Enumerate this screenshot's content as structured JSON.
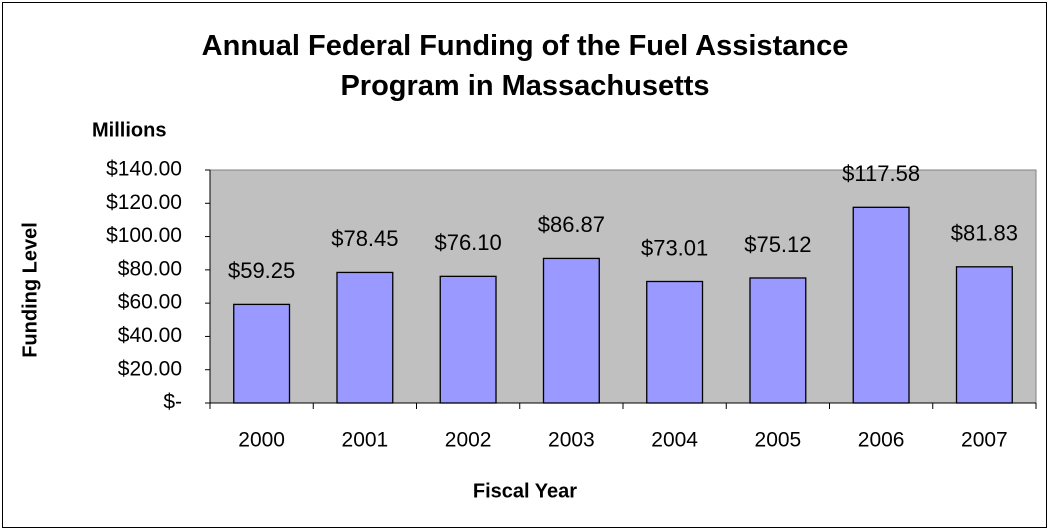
{
  "chart_data": {
    "type": "bar",
    "title": "Annual Federal Funding of the Fuel Assistance Program in Massachusetts",
    "unit_label": "Millions",
    "y_label": "Funding Level",
    "x_label": "Fiscal Year",
    "categories": [
      "2000",
      "2001",
      "2002",
      "2003",
      "2004",
      "2005",
      "2006",
      "2007"
    ],
    "values": [
      59.25,
      78.45,
      76.1,
      86.87,
      73.01,
      75.12,
      117.58,
      81.83
    ],
    "value_labels": [
      "$59.25",
      "$78.45",
      "$76.10",
      "$86.87",
      "$73.01",
      "$75.12",
      "$117.58",
      "$81.83"
    ],
    "color": "#9999ff",
    "ylim": [
      0,
      140
    ],
    "yticks": [
      {
        "value": 0,
        "label": "$-"
      },
      {
        "value": 20,
        "label": "$20.00"
      },
      {
        "value": 40,
        "label": "$40.00"
      },
      {
        "value": 60,
        "label": "$60.00"
      },
      {
        "value": 80,
        "label": "$80.00"
      },
      {
        "value": 100,
        "label": "$100.00"
      },
      {
        "value": 120,
        "label": "$120.00"
      },
      {
        "value": 140,
        "label": "$140.00"
      }
    ],
    "grid": false
  }
}
